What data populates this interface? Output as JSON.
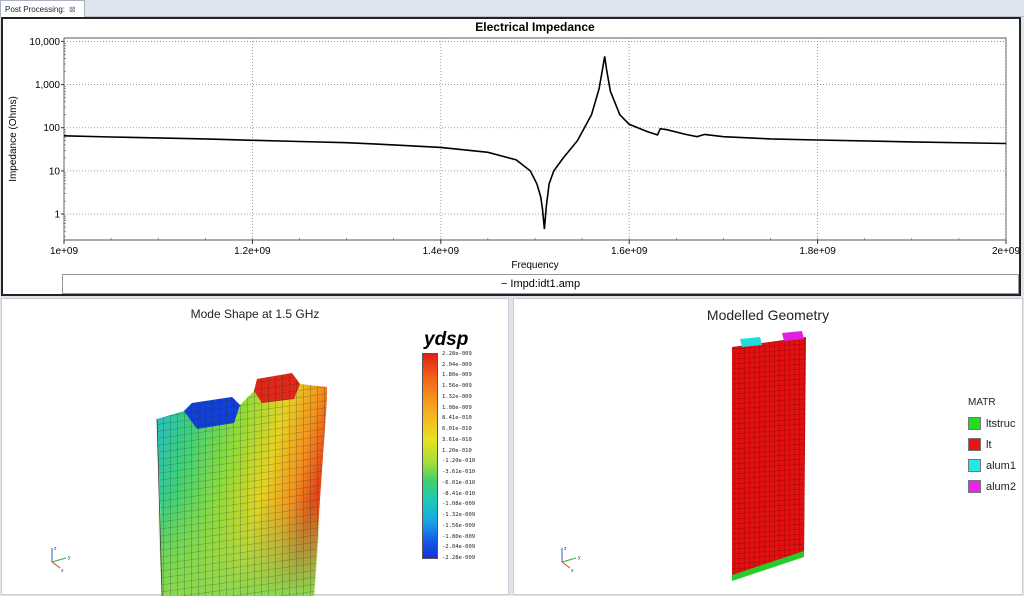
{
  "tab": {
    "label": "Post Processing:",
    "close_icon": "close-icon"
  },
  "chart_data": {
    "type": "line",
    "title": "Electrical Impedance",
    "xlabel": "Frequency",
    "ylabel": "Impedance (Ohms)",
    "yscale": "log",
    "xlim": [
      1000000000,
      2000000000
    ],
    "ylim": [
      0.25,
      12000
    ],
    "x_ticks": [
      "1e+09",
      "1.2e+09",
      "1.4e+09",
      "1.6e+09",
      "1.8e+09",
      "2e+09"
    ],
    "y_ticks": [
      "1",
      "10",
      "100",
      "1,000",
      "10,000"
    ],
    "grid": true,
    "legend": "bottom",
    "series": [
      {
        "name": "Impd:idt1.amp",
        "color": "#000000",
        "x": [
          1000000000,
          1050000000,
          1100000000,
          1150000000,
          1200000000,
          1250000000,
          1300000000,
          1350000000,
          1400000000,
          1450000000,
          1480000000,
          1495000000,
          1502000000,
          1506000000,
          1508000000,
          1510000000,
          1512000000,
          1515000000,
          1520000000,
          1530000000,
          1545000000,
          1560000000,
          1568000000,
          1572000000,
          1574000000,
          1576000000,
          1580000000,
          1590000000,
          1600000000,
          1620000000,
          1630000000,
          1633000000,
          1640000000,
          1660000000,
          1672000000,
          1680000000,
          1700000000,
          1750000000,
          1800000000,
          1900000000,
          2000000000
        ],
        "y": [
          65,
          61,
          58,
          55,
          51,
          48,
          45,
          40,
          35,
          27,
          18,
          10,
          5,
          2.5,
          1.3,
          0.45,
          1.5,
          5,
          10,
          20,
          50,
          200,
          800,
          2500,
          4500,
          2200,
          700,
          200,
          120,
          80,
          68,
          95,
          90,
          70,
          62,
          70,
          62,
          55,
          52,
          47,
          43
        ]
      }
    ]
  },
  "mode_view": {
    "title": "Mode Shape at 1.5 GHz",
    "scalar_name": "ydsp",
    "colorbar_labels": [
      "2.28e-009",
      "2.04e-009",
      "1.80e-009",
      "1.56e-009",
      "1.32e-009",
      "1.08e-009",
      "8.41e-010",
      "6.01e-010",
      "3.61e-010",
      "1.20e-010",
      "-1.20e-010",
      "-3.61e-010",
      "-6.01e-010",
      "-8.41e-010",
      "-1.08e-009",
      "-1.32e-009",
      "-1.56e-009",
      "-1.80e-009",
      "-2.04e-009",
      "-2.28e-009"
    ],
    "axes_labels": {
      "x": "x",
      "y": "y",
      "z": "z"
    }
  },
  "geometry_view": {
    "title": "Modelled Geometry",
    "legend_title": "MATR",
    "materials": [
      {
        "label": "ltstruc",
        "color": "#22dd22"
      },
      {
        "label": "lt",
        "color": "#ee1111"
      },
      {
        "label": "alum1",
        "color": "#22e8e8"
      },
      {
        "label": "alum2",
        "color": "#ee22ee"
      }
    ],
    "axes_labels": {
      "x": "x",
      "y": "y",
      "z": "z"
    }
  }
}
